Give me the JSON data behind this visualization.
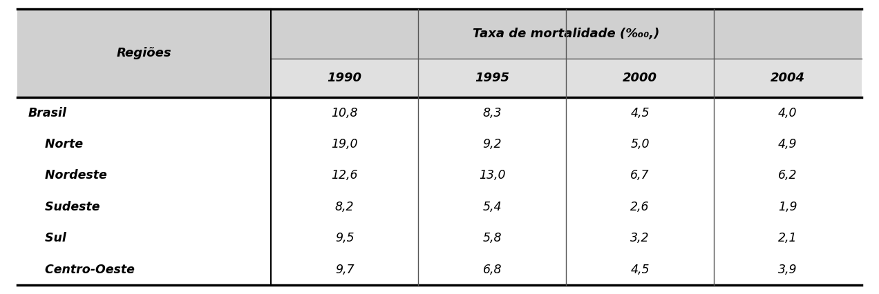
{
  "header_col": "Regiões",
  "header_group": "Taxa de mortalidade (‰₀,)",
  "years": [
    "1990",
    "1995",
    "2000",
    "2004"
  ],
  "rows": [
    {
      "region": "Brasil",
      "indent": false,
      "values": [
        "10,8",
        "8,3",
        "4,5",
        "4,0"
      ]
    },
    {
      "region": "Norte",
      "indent": true,
      "values": [
        "19,0",
        "9,2",
        "5,0",
        "4,9"
      ]
    },
    {
      "region": "Nordeste",
      "indent": true,
      "values": [
        "12,6",
        "13,0",
        "6,7",
        "6,2"
      ]
    },
    {
      "region": "Sudeste",
      "indent": true,
      "values": [
        "8,2",
        "5,4",
        "2,6",
        "1,9"
      ]
    },
    {
      "region": "Sul",
      "indent": true,
      "values": [
        "9,5",
        "5,8",
        "3,2",
        "2,1"
      ]
    },
    {
      "region": "Centro-Oeste",
      "indent": true,
      "values": [
        "9,7",
        "6,8",
        "4,5",
        "3,9"
      ]
    }
  ],
  "header_bg": "#d0d0d0",
  "subheader_bg": "#e0e0e0",
  "body_bg": "#ffffff",
  "header_text_color": "#000000",
  "body_text_color": "#000000",
  "thick_line_color": "#000000",
  "thin_line_color": "#555555"
}
